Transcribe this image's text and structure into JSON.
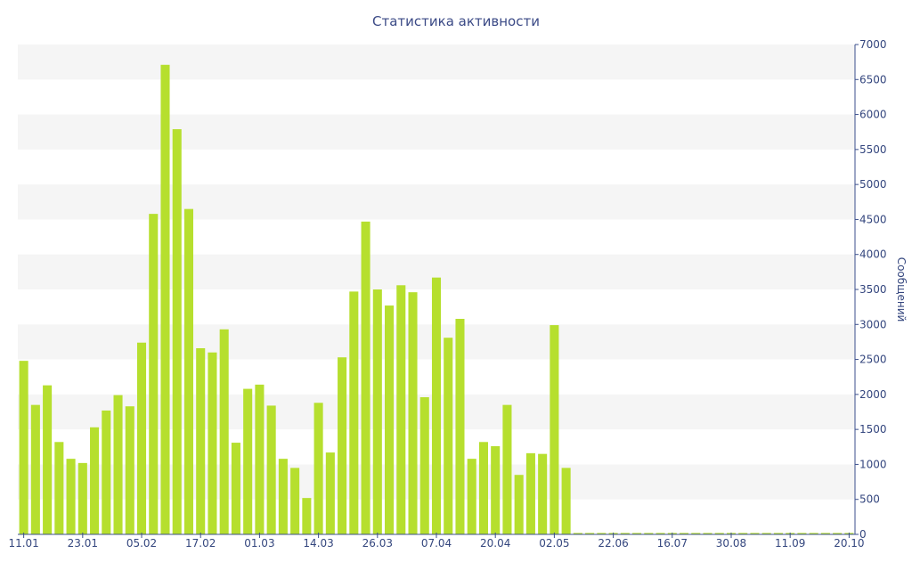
{
  "chart_data": {
    "type": "bar",
    "title": "Статистика активности",
    "xlabel": "",
    "ylabel": "Сообщений",
    "y_axis_side": "right",
    "ylim": [
      0,
      7000
    ],
    "y_ticks": [
      0,
      500,
      1000,
      1500,
      2000,
      2500,
      3000,
      3500,
      4000,
      4500,
      5000,
      5500,
      6000,
      6500,
      7000
    ],
    "grid": "alternating horizontal bands",
    "legend": "none",
    "x_tick_labels": [
      "11.01",
      "23.01",
      "05.02",
      "17.02",
      "01.03",
      "14.03",
      "26.03",
      "07.04",
      "20.04",
      "02.05",
      "22.06",
      "16.07",
      "30.08",
      "11.09",
      "20.10"
    ],
    "values": [
      2480,
      1850,
      2130,
      1320,
      1080,
      1020,
      1530,
      1770,
      1990,
      1830,
      2740,
      4580,
      6710,
      5790,
      4650,
      2660,
      2600,
      2930,
      1310,
      2080,
      2140,
      1840,
      1080,
      950,
      520,
      1880,
      1170,
      2530,
      3470,
      4470,
      3500,
      3270,
      3560,
      3460,
      1960,
      3670,
      2810,
      3080,
      1080,
      1320,
      1260,
      1850,
      850,
      1160,
      1150,
      2990,
      950,
      20,
      20,
      20,
      20,
      20,
      20,
      20,
      20,
      20,
      20,
      20,
      20,
      20,
      20,
      20,
      20,
      20,
      20,
      20,
      20,
      20,
      20,
      20,
      20
    ],
    "colors": {
      "bar": "#b6df2e",
      "band": "#f5f5f5",
      "axis": "#3b4f8c",
      "text": "#34467e",
      "title": "#3b4a86"
    }
  }
}
